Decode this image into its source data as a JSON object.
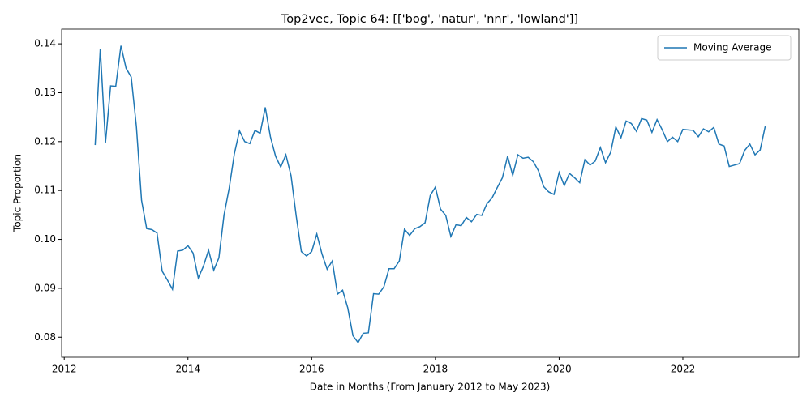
{
  "chart_data": {
    "type": "line",
    "title": "Top2vec, Topic 64: [['bog', 'natur', 'nnr', 'lowland']]",
    "x_label": "Date in Months (From January 2012 to May 2023)",
    "y_label": "Topic Proportion",
    "x": [
      2012.5,
      2012.583,
      2012.667,
      2012.75,
      2012.833,
      2012.917,
      2013,
      2013.083,
      2013.167,
      2013.25,
      2013.333,
      2013.417,
      2013.5,
      2013.583,
      2013.667,
      2013.75,
      2013.833,
      2013.917,
      2014,
      2014.083,
      2014.167,
      2014.25,
      2014.333,
      2014.417,
      2014.5,
      2014.583,
      2014.667,
      2014.75,
      2014.833,
      2014.917,
      2015,
      2015.083,
      2015.167,
      2015.25,
      2015.333,
      2015.417,
      2015.5,
      2015.583,
      2015.667,
      2015.75,
      2015.833,
      2015.917,
      2016,
      2016.083,
      2016.167,
      2016.25,
      2016.333,
      2016.417,
      2016.5,
      2016.583,
      2016.667,
      2016.75,
      2016.833,
      2016.917,
      2017,
      2017.083,
      2017.167,
      2017.25,
      2017.333,
      2017.417,
      2017.5,
      2017.583,
      2017.667,
      2017.75,
      2017.833,
      2017.917,
      2018,
      2018.083,
      2018.167,
      2018.25,
      2018.333,
      2018.417,
      2018.5,
      2018.583,
      2018.667,
      2018.75,
      2018.833,
      2018.917,
      2019,
      2019.083,
      2019.167,
      2019.25,
      2019.333,
      2019.417,
      2019.5,
      2019.583,
      2019.667,
      2019.75,
      2019.833,
      2019.917,
      2020,
      2020.083,
      2020.167,
      2020.25,
      2020.333,
      2020.417,
      2020.5,
      2020.583,
      2020.667,
      2020.75,
      2020.833,
      2020.917,
      2021,
      2021.083,
      2021.167,
      2021.25,
      2021.333,
      2021.417,
      2021.5,
      2021.583,
      2021.667,
      2021.75,
      2021.833,
      2021.917,
      2022,
      2022.083,
      2022.167,
      2022.25,
      2022.333,
      2022.417,
      2022.5,
      2022.583,
      2022.667,
      2022.75,
      2022.833,
      2022.917,
      2023,
      2023.083,
      2023.167,
      2023.25,
      2023.333
    ],
    "series": [
      {
        "name": "Moving Average",
        "color": "#1f77b4",
        "values": [
          0.1193,
          0.139,
          0.1198,
          0.1314,
          0.1313,
          0.1396,
          0.135,
          0.1332,
          0.123,
          0.108,
          0.1022,
          0.102,
          0.1013,
          0.0935,
          0.0917,
          0.0898,
          0.0976,
          0.0978,
          0.0987,
          0.0972,
          0.0921,
          0.0945,
          0.0978,
          0.0937,
          0.0962,
          0.105,
          0.1105,
          0.1175,
          0.1222,
          0.12,
          0.1196,
          0.1223,
          0.1217,
          0.127,
          0.121,
          0.117,
          0.1148,
          0.1173,
          0.113,
          0.1048,
          0.0975,
          0.0966,
          0.0975,
          0.1011,
          0.097,
          0.0939,
          0.0956,
          0.0888,
          0.0896,
          0.086,
          0.0803,
          0.0789,
          0.0808,
          0.0809,
          0.0889,
          0.0888,
          0.0903,
          0.094,
          0.094,
          0.0956,
          0.1021,
          0.1008,
          0.1022,
          0.1026,
          0.1034,
          0.109,
          0.1107,
          0.1062,
          0.1049,
          0.1006,
          0.103,
          0.1028,
          0.1045,
          0.1036,
          0.1051,
          0.1049,
          0.1073,
          0.1085,
          0.1106,
          0.1126,
          0.117,
          0.1131,
          0.1173,
          0.1166,
          0.1168,
          0.1159,
          0.114,
          0.1108,
          0.1097,
          0.1092,
          0.1137,
          0.111,
          0.1135,
          0.1126,
          0.1116,
          0.1163,
          0.1152,
          0.116,
          0.1188,
          0.1157,
          0.1178,
          0.123,
          0.1208,
          0.1242,
          0.1237,
          0.1221,
          0.1247,
          0.1244,
          0.1219,
          0.1245,
          0.1224,
          0.12,
          0.1209,
          0.12,
          0.1225,
          0.1224,
          0.1223,
          0.121,
          0.1226,
          0.122,
          0.1229,
          0.1195,
          0.1191,
          0.1149,
          0.1152,
          0.1155,
          0.1182,
          0.1195,
          0.1173,
          0.1183,
          0.1232
        ]
      }
    ],
    "xlim": [
      2011.958,
      2023.875
    ],
    "xticks": [
      2012,
      2014,
      2016,
      2018,
      2020,
      2022
    ],
    "ylim": [
      0.0759,
      0.143
    ],
    "yticks": [
      0.08,
      0.09,
      {
        "value": 0.1,
        "label": "0.10"
      },
      0.11,
      0.12,
      0.13,
      0.14
    ],
    "legend": "upper right"
  }
}
